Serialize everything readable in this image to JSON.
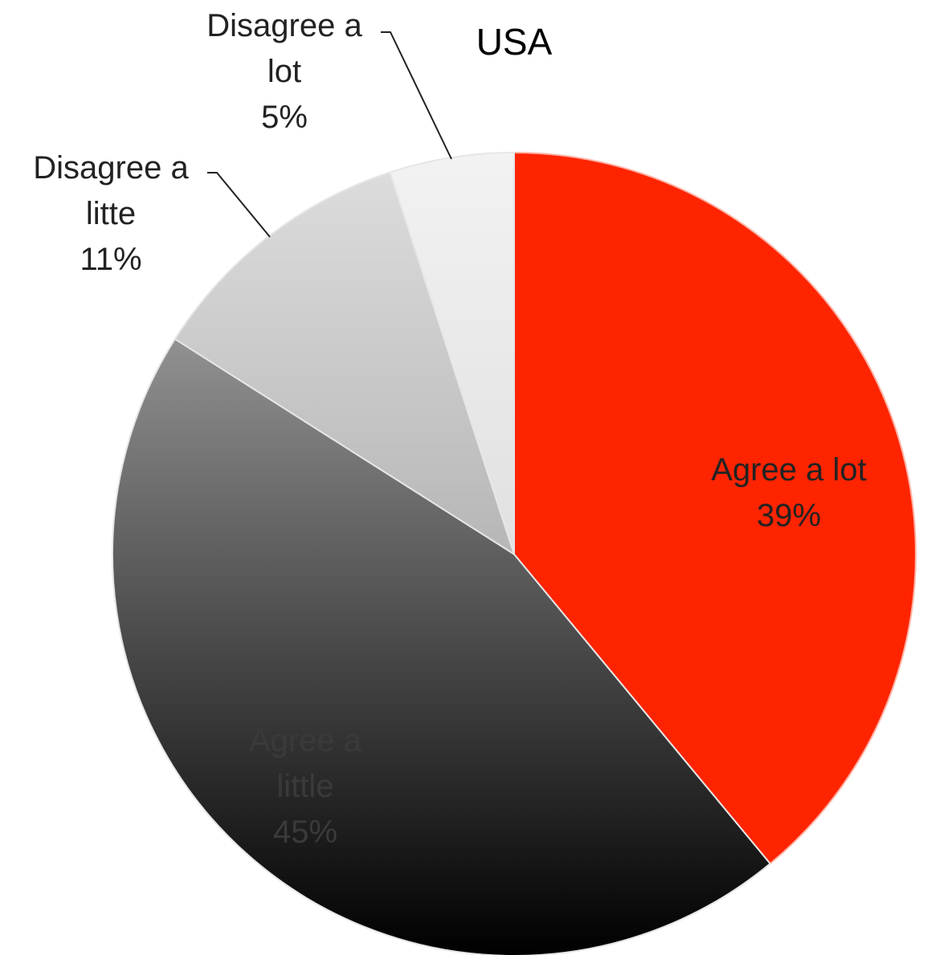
{
  "chart_data": {
    "type": "pie",
    "title": "USA",
    "start_angle_deg": 0,
    "direction": "clockwise",
    "slices": [
      {
        "label_lines": [
          "Agree a lot"
        ],
        "percent_label": "39%",
        "value": 39,
        "color": "#ff2400",
        "gradient": false,
        "label_color": "#222222"
      },
      {
        "label_lines": [
          "Agree a",
          "little"
        ],
        "percent_label": "45%",
        "value": 45,
        "color_top": "#bdbdbd",
        "color_bottom": "#000000",
        "gradient": true,
        "label_color": "#3a3a3a"
      },
      {
        "label_lines": [
          "Disagree a",
          "litte"
        ],
        "percent_label": "11%",
        "value": 11,
        "color_top": "#dedede",
        "color_bottom": "#8f8f8f",
        "gradient": true,
        "label_color": "#222222"
      },
      {
        "label_lines": [
          "Disagree a",
          "lot"
        ],
        "percent_label": "5%",
        "value": 5,
        "color_top": "#f2f2f2",
        "color_bottom": "#cfcfcf",
        "gradient": true,
        "label_color": "#222222"
      }
    ],
    "legend": "none"
  }
}
